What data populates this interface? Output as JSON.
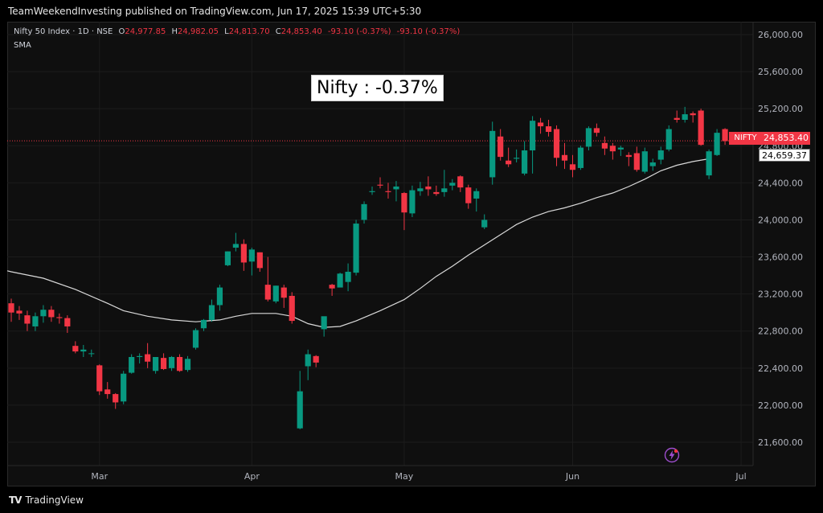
{
  "header": {
    "published": "TeamWeekendInvesting published on TradingView.com, Jun 17, 2025 15:39 UTC+5:30"
  },
  "legend": {
    "symbol": "Nifty 50 Index · 1D · NSE",
    "o_label": "O",
    "o_value": "24,977.85",
    "h_label": "H",
    "h_value": "24,982.05",
    "l_label": "L",
    "l_value": "24,813.70",
    "c_label": "C",
    "c_value": "24,853.40",
    "change": "-93.10 (-0.37%)",
    "change2": "-93.10 (-0.37%)",
    "indicator": "SMA"
  },
  "annotation": {
    "text": "Nifty : -0.37%"
  },
  "tags": {
    "symbol": "NIFTY",
    "price": "24,853.40",
    "sma": "24,659.37"
  },
  "footer": {
    "brand": "TradingView",
    "logo": "TV"
  },
  "colors": {
    "up": "#089981",
    "down": "#f23645",
    "sma": "#d9d9d9",
    "grid": "#1c1c1c",
    "axis_text": "#b2b5be"
  },
  "chart_data": {
    "type": "candlestick",
    "title": "Nifty 50 Index · 1D · NSE",
    "ylim": [
      21300,
      26200
    ],
    "y_ticks": [
      "21,600.00",
      "22,000.00",
      "22,400.00",
      "22,800.00",
      "23,200.00",
      "23,600.00",
      "24,000.00",
      "24,400.00",
      "24,800.00",
      "25,200.00",
      "25,600.00",
      "26,000.00"
    ],
    "y_tick_values": [
      21600,
      22000,
      22400,
      22800,
      23200,
      23600,
      24000,
      24400,
      24800,
      25200,
      25600,
      26000
    ],
    "x_labels": [
      {
        "label": "Mar",
        "index": 11
      },
      {
        "label": "Apr",
        "index": 30
      },
      {
        "label": "May",
        "index": 49
      },
      {
        "label": "Jun",
        "index": 70
      },
      {
        "label": "Jul",
        "index": 91
      }
    ],
    "x_range": [
      -0.5,
      92.5
    ],
    "candles": [
      [
        23100,
        23150,
        22900,
        23000
      ],
      [
        23020,
        23070,
        22920,
        22990
      ],
      [
        22970,
        23020,
        22800,
        22880
      ],
      [
        22850,
        23000,
        22800,
        22960
      ],
      [
        22960,
        23080,
        22890,
        23030
      ],
      [
        23030,
        23070,
        22900,
        22950
      ],
      [
        22950,
        22990,
        22880,
        22940
      ],
      [
        22940,
        22970,
        22780,
        22850
      ],
      [
        22640,
        22690,
        22560,
        22580
      ],
      [
        22580,
        22650,
        22520,
        22600
      ],
      [
        22560,
        22600,
        22520,
        22560
      ],
      [
        22430,
        22440,
        22110,
        22150
      ],
      [
        22170,
        22250,
        22070,
        22120
      ],
      [
        22120,
        22130,
        21960,
        22030
      ],
      [
        22040,
        22370,
        22010,
        22340
      ],
      [
        22350,
        22550,
        22340,
        22520
      ],
      [
        22520,
        22560,
        22450,
        22530
      ],
      [
        22550,
        22670,
        22400,
        22470
      ],
      [
        22370,
        22520,
        22340,
        22520
      ],
      [
        22510,
        22560,
        22380,
        22390
      ],
      [
        22400,
        22530,
        22370,
        22520
      ],
      [
        22520,
        22550,
        22360,
        22370
      ],
      [
        22380,
        22530,
        22360,
        22500
      ],
      [
        22620,
        22830,
        22600,
        22810
      ],
      [
        22830,
        22930,
        22800,
        22920
      ],
      [
        22920,
        23140,
        22900,
        23080
      ],
      [
        23080,
        23300,
        23020,
        23270
      ],
      [
        23510,
        23660,
        23500,
        23660
      ],
      [
        23700,
        23860,
        23660,
        23740
      ],
      [
        23740,
        23790,
        23450,
        23540
      ],
      [
        23550,
        23700,
        23400,
        23680
      ],
      [
        23650,
        23650,
        23440,
        23480
      ],
      [
        23300,
        23600,
        23120,
        23140
      ],
      [
        23120,
        23290,
        23100,
        23290
      ],
      [
        23270,
        23300,
        23050,
        23160
      ],
      [
        23180,
        23220,
        22880,
        22910
      ],
      [
        21750,
        22370,
        21740,
        22150
      ],
      [
        22420,
        22600,
        22270,
        22550
      ],
      [
        22530,
        22540,
        22410,
        22460
      ],
      [
        22820,
        22920,
        22740,
        22960
      ],
      [
        23300,
        23310,
        23180,
        23260
      ],
      [
        23270,
        23430,
        23280,
        23420
      ],
      [
        23330,
        23530,
        23230,
        23440
      ],
      [
        23430,
        24000,
        23400,
        23960
      ],
      [
        24000,
        24200,
        23960,
        24170
      ],
      [
        24300,
        24360,
        24270,
        24310
      ],
      [
        24380,
        24460,
        24340,
        24370
      ],
      [
        24310,
        24400,
        24230,
        24300
      ],
      [
        24330,
        24420,
        24200,
        24360
      ],
      [
        24290,
        24300,
        23890,
        24080
      ],
      [
        24070,
        24370,
        24030,
        24320
      ],
      [
        24310,
        24410,
        24260,
        24340
      ],
      [
        24360,
        24470,
        24260,
        24330
      ],
      [
        24300,
        24370,
        24260,
        24280
      ],
      [
        24300,
        24540,
        24250,
        24340
      ],
      [
        24370,
        24440,
        24320,
        24400
      ],
      [
        24470,
        24480,
        24300,
        24350
      ],
      [
        24350,
        24380,
        24120,
        24180
      ],
      [
        24230,
        24340,
        24090,
        24310
      ],
      [
        23920,
        24060,
        23900,
        24000
      ],
      [
        24460,
        25060,
        24380,
        24960
      ],
      [
        24900,
        24980,
        24640,
        24680
      ],
      [
        24640,
        24780,
        24570,
        24600
      ],
      [
        24660,
        24760,
        24620,
        24670
      ],
      [
        24500,
        24850,
        24480,
        24750
      ],
      [
        24750,
        25120,
        24500,
        25070
      ],
      [
        25050,
        25100,
        24930,
        25010
      ],
      [
        25010,
        25080,
        24900,
        24950
      ],
      [
        24980,
        25020,
        24580,
        24670
      ],
      [
        24700,
        24830,
        24550,
        24640
      ],
      [
        24600,
        24700,
        24460,
        24540
      ],
      [
        24560,
        24800,
        24540,
        24780
      ],
      [
        24790,
        25010,
        24750,
        24990
      ],
      [
        24990,
        25040,
        24900,
        24940
      ],
      [
        24830,
        24900,
        24700,
        24770
      ],
      [
        24800,
        24830,
        24650,
        24740
      ],
      [
        24760,
        24800,
        24690,
        24780
      ],
      [
        24700,
        24730,
        24580,
        24680
      ],
      [
        24720,
        24790,
        24520,
        24540
      ],
      [
        24520,
        24780,
        24500,
        24740
      ],
      [
        24580,
        24660,
        24530,
        24620
      ],
      [
        24650,
        24790,
        24600,
        24750
      ],
      [
        24760,
        25020,
        24740,
        24980
      ],
      [
        25100,
        25180,
        25050,
        25080
      ],
      [
        25080,
        25220,
        25050,
        25140
      ],
      [
        25150,
        25170,
        25050,
        25130
      ],
      [
        25180,
        25200,
        24800,
        24810
      ],
      [
        24480,
        24760,
        24440,
        24740
      ],
      [
        24700,
        24980,
        24690,
        24940
      ],
      [
        24980,
        24990,
        24810,
        24850
      ]
    ],
    "sma": [
      [
        -0.5,
        23450
      ],
      [
        0,
        23440
      ],
      [
        4,
        23370
      ],
      [
        8,
        23250
      ],
      [
        12,
        23100
      ],
      [
        14,
        23020
      ],
      [
        17,
        22960
      ],
      [
        20,
        22920
      ],
      [
        23,
        22900
      ],
      [
        26,
        22920
      ],
      [
        28,
        22960
      ],
      [
        30,
        22990
      ],
      [
        33,
        22990
      ],
      [
        35,
        22960
      ],
      [
        37,
        22880
      ],
      [
        39,
        22840
      ],
      [
        41,
        22850
      ],
      [
        43,
        22910
      ],
      [
        46,
        23020
      ],
      [
        49,
        23140
      ],
      [
        51,
        23260
      ],
      [
        53,
        23390
      ],
      [
        55,
        23500
      ],
      [
        57,
        23620
      ],
      [
        59,
        23730
      ],
      [
        61,
        23840
      ],
      [
        63,
        23950
      ],
      [
        65,
        24030
      ],
      [
        67,
        24090
      ],
      [
        69,
        24130
      ],
      [
        71,
        24180
      ],
      [
        73,
        24240
      ],
      [
        75,
        24290
      ],
      [
        77,
        24360
      ],
      [
        79,
        24440
      ],
      [
        81,
        24530
      ],
      [
        83,
        24590
      ],
      [
        85,
        24630
      ],
      [
        87,
        24659
      ]
    ],
    "last_close": 24853.4,
    "sma_last": 24659.37
  }
}
